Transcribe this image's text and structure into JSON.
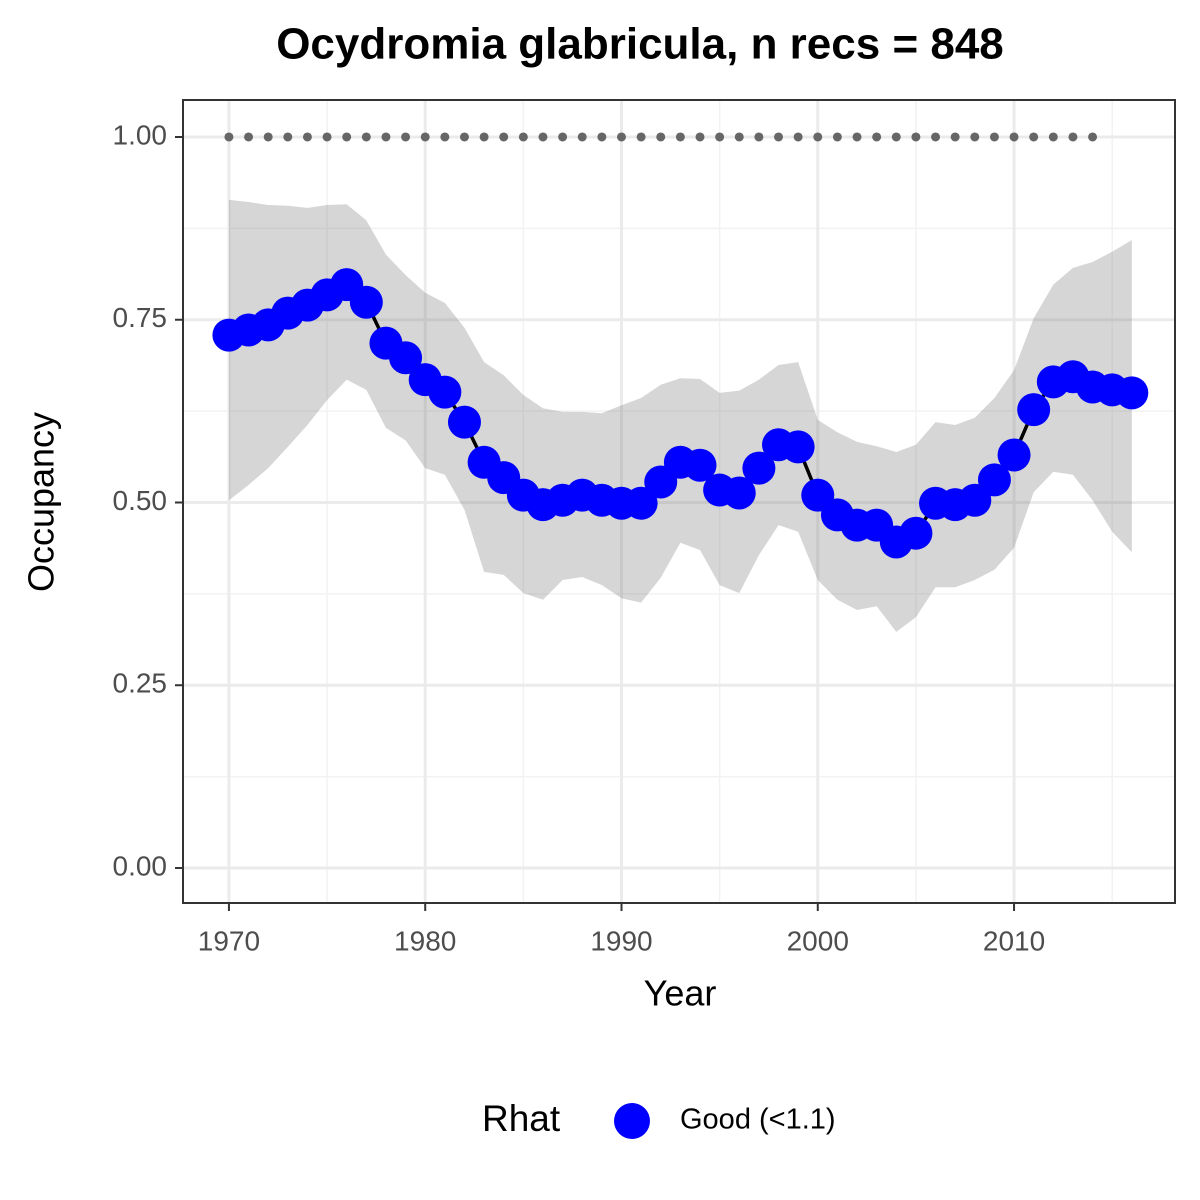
{
  "chart_data": {
    "type": "line",
    "title": "Ocydromia glabricula, n recs = 848",
    "x_label": "Year",
    "y_label": "Occupancy",
    "x": [
      1970,
      1971,
      1972,
      1973,
      1974,
      1975,
      1976,
      1977,
      1978,
      1979,
      1980,
      1981,
      1982,
      1983,
      1984,
      1985,
      1986,
      1987,
      1988,
      1989,
      1990,
      1991,
      1992,
      1993,
      1994,
      1995,
      1996,
      1997,
      1998,
      1999,
      2000,
      2001,
      2002,
      2003,
      2004,
      2005,
      2006,
      2007,
      2008,
      2009,
      2010,
      2011,
      2012,
      2013,
      2014,
      2015,
      2016
    ],
    "series": [
      {
        "name": "Good (<1.1)",
        "color": "#0000ff",
        "values": [
          0.729,
          0.736,
          0.743,
          0.759,
          0.77,
          0.784,
          0.798,
          0.774,
          0.718,
          0.698,
          0.668,
          0.651,
          0.61,
          0.555,
          0.534,
          0.51,
          0.497,
          0.503,
          0.51,
          0.503,
          0.499,
          0.499,
          0.528,
          0.555,
          0.551,
          0.517,
          0.513,
          0.547,
          0.579,
          0.576,
          0.51,
          0.483,
          0.469,
          0.469,
          0.446,
          0.458,
          0.499,
          0.497,
          0.503,
          0.531,
          0.565,
          0.627,
          0.665,
          0.672,
          0.658,
          0.654,
          0.65
        ]
      }
    ],
    "ribbon": {
      "upper": [
        0.914,
        0.911,
        0.907,
        0.906,
        0.903,
        0.907,
        0.908,
        0.886,
        0.839,
        0.811,
        0.787,
        0.773,
        0.739,
        0.692,
        0.674,
        0.647,
        0.629,
        0.624,
        0.624,
        0.622,
        0.633,
        0.643,
        0.661,
        0.67,
        0.669,
        0.65,
        0.653,
        0.668,
        0.688,
        0.692,
        0.613,
        0.596,
        0.583,
        0.577,
        0.569,
        0.579,
        0.61,
        0.606,
        0.616,
        0.643,
        0.681,
        0.752,
        0.798,
        0.821,
        0.829,
        0.843,
        0.859
      ],
      "lower": [
        0.503,
        0.524,
        0.547,
        0.576,
        0.606,
        0.64,
        0.668,
        0.654,
        0.602,
        0.585,
        0.547,
        0.538,
        0.49,
        0.405,
        0.401,
        0.376,
        0.367,
        0.394,
        0.398,
        0.387,
        0.369,
        0.363,
        0.397,
        0.445,
        0.435,
        0.387,
        0.376,
        0.428,
        0.469,
        0.46,
        0.394,
        0.367,
        0.353,
        0.358,
        0.323,
        0.343,
        0.384,
        0.384,
        0.394,
        0.408,
        0.438,
        0.514,
        0.542,
        0.538,
        0.503,
        0.46,
        0.432
      ],
      "color": "#808080"
    },
    "reference": {
      "color": "#666666",
      "values": [
        1,
        1,
        1,
        1,
        1,
        1,
        1,
        1,
        1,
        1,
        1,
        1,
        1,
        1,
        1,
        1,
        1,
        1,
        1,
        1,
        1,
        1,
        1,
        1,
        1,
        1,
        1,
        1,
        1,
        1,
        1,
        1,
        1,
        1,
        1,
        1,
        1,
        1,
        1,
        1,
        1,
        1,
        1,
        1,
        1,
        null,
        null
      ]
    },
    "line_color": "#000000",
    "legend_title": "Rhat",
    "legend": "bottom",
    "xlim": [
      1967.66,
      2018.2
    ],
    "ylim": [
      -0.0479,
      1.0506
    ],
    "xticks": [
      1970,
      1980,
      1990,
      2000,
      2010
    ],
    "xminorticks": [
      1975,
      1985,
      1995,
      2005,
      2015
    ],
    "yticks": [
      {
        "value": 0,
        "label": "0.00"
      },
      {
        "value": 0.25,
        "label": "0.25"
      },
      {
        "value": 0.5,
        "label": "0.50"
      },
      {
        "value": 0.75,
        "label": "0.75"
      },
      {
        "value": 1,
        "label": "1.00"
      }
    ],
    "yminorticks": [
      0.125,
      0.375,
      0.625,
      0.875
    ],
    "grid": true
  }
}
